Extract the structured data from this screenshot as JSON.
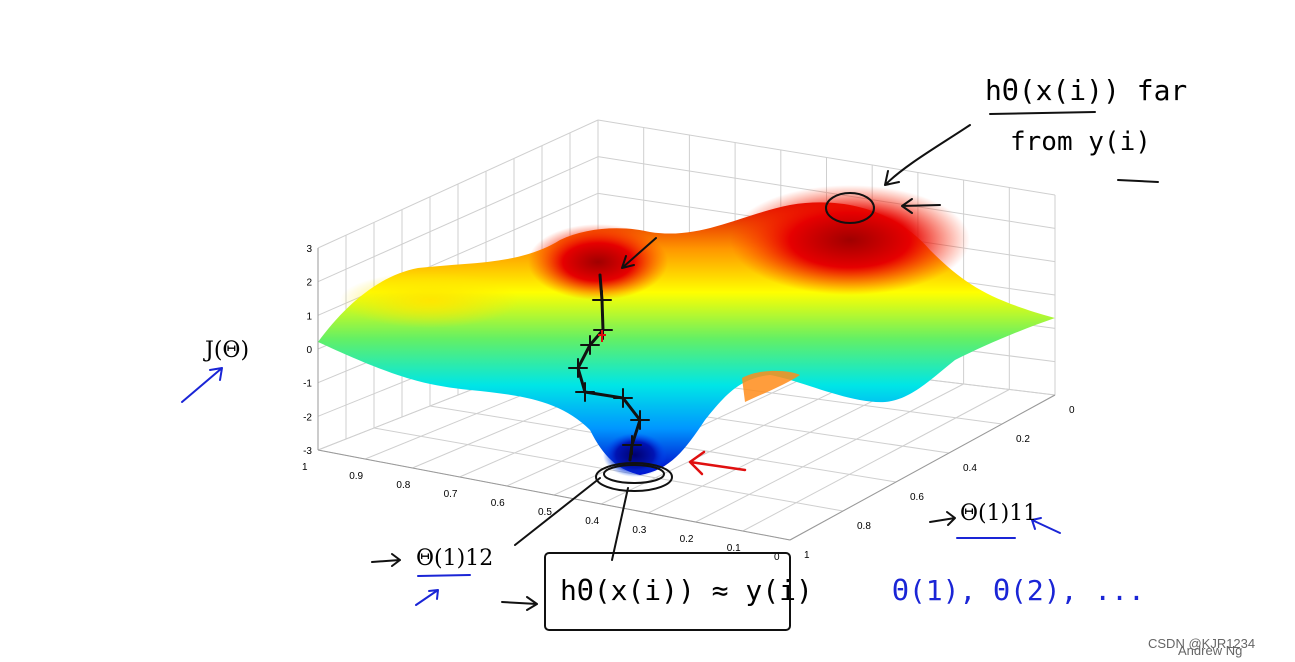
{
  "chart_data": {
    "type": "surface",
    "zlabel": "J(Θ)",
    "xlabel": "Θ(1)12",
    "ylabel": "Θ(1)11",
    "z_ticks": [
      "3",
      "2",
      "1",
      "0",
      "-1",
      "-2",
      "-3"
    ],
    "x_ticks": [
      "1",
      "0.9",
      "0.8",
      "0.7",
      "0.6",
      "0.5",
      "0.4",
      "0.3",
      "0.2",
      "0.1",
      "0"
    ],
    "y_ticks": [
      "0",
      "0.2",
      "0.4",
      "0.6",
      "0.8",
      "1"
    ],
    "zlim": [
      -3,
      3
    ],
    "xlim": [
      0,
      1
    ],
    "ylim": [
      0,
      1
    ],
    "grid": true,
    "colormap": [
      "#0000c8",
      "#0096ff",
      "#00e6e6",
      "#64f064",
      "#ffff00",
      "#ff9600",
      "#dc0000"
    ]
  },
  "annotations": {
    "top_note_line1": "hΘ(x(i)) far",
    "top_note_line2": "from y(i)",
    "bottom_box": "hΘ(x(i)) ≈ y(i)",
    "theta_series": "Θ(1), Θ(2), ..."
  },
  "footer": {
    "author": "Andrew Ng",
    "watermark": "CSDN @KJR1234"
  }
}
